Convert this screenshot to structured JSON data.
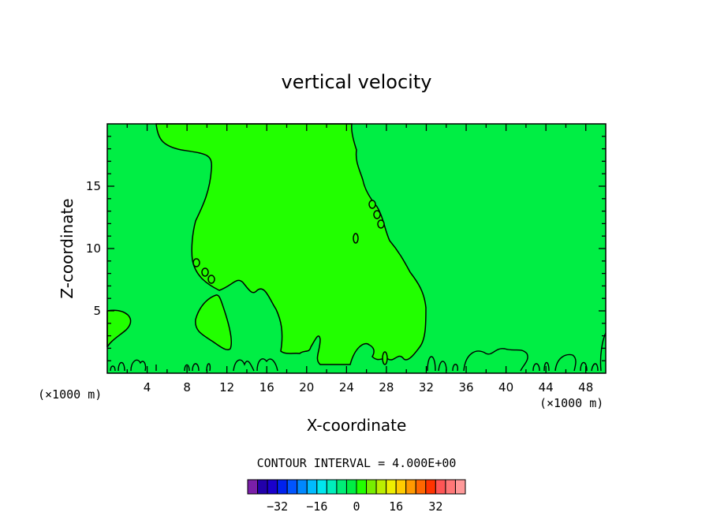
{
  "chart_data": {
    "type": "heatmap",
    "title": "vertical velocity",
    "xlabel": "X-coordinate",
    "ylabel": "Z-coordinate",
    "x_unit_left": "(×1000 m)",
    "x_unit_right": "(×1000 m)",
    "xlim": [
      0,
      50
    ],
    "ylim": [
      0,
      20
    ],
    "x_ticks": [
      4,
      8,
      12,
      16,
      20,
      24,
      28,
      32,
      36,
      40,
      44,
      48
    ],
    "y_ticks": [
      5,
      10,
      15
    ],
    "contour_interval_text": "CONTOUR INTERVAL = 4.000E+00",
    "colorbar": {
      "colors": [
        "#7a1fa8",
        "#2200aa",
        "#1a00cc",
        "#0022ee",
        "#0055ff",
        "#0088ff",
        "#00bbff",
        "#00e6ee",
        "#00eebb",
        "#00ee77",
        "#00ee44",
        "#22ff00",
        "#77ee00",
        "#bbee00",
        "#eeee00",
        "#ffcc00",
        "#ff9900",
        "#ff6600",
        "#ff3300",
        "#ff5555",
        "#ff7777",
        "#ff9999"
      ],
      "tick_labels": [
        "-32",
        "-16",
        "0",
        "16",
        "32"
      ],
      "tick_values": [
        -32,
        -16,
        0,
        16,
        32
      ]
    },
    "background_color": "#00ee44",
    "region_color": "#22ff00"
  }
}
